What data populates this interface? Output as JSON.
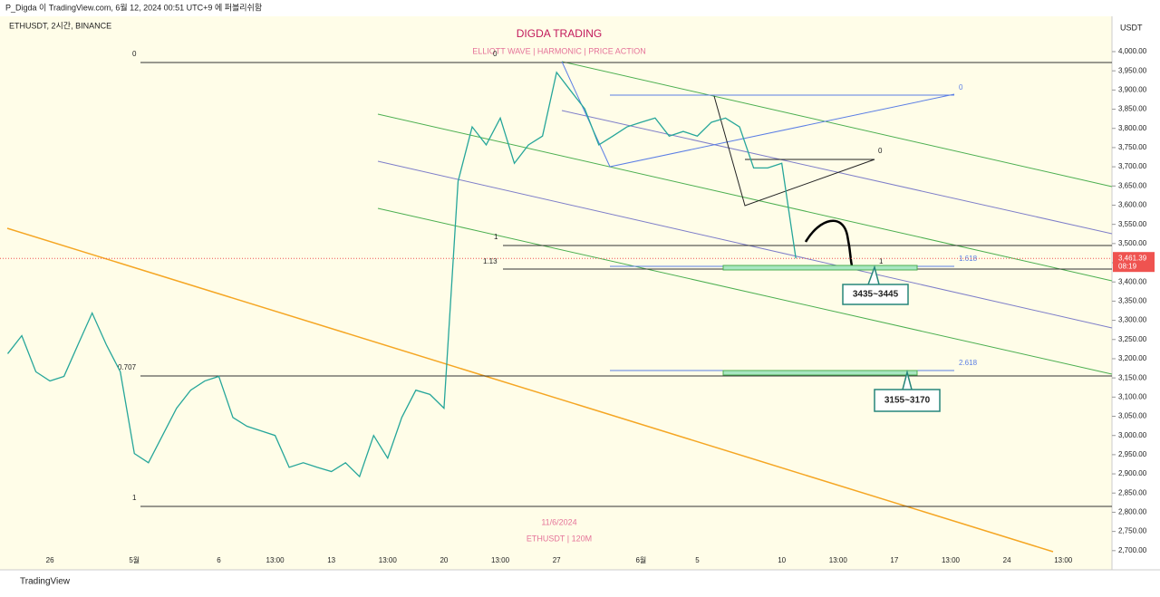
{
  "header": {
    "publisher": "P_Digda 이 TradingView.com, 6월 12, 2024 00:51 UTC+9 에 퍼블리쉬함",
    "symbol": "ETHUSDT, 2시간, BINANCE",
    "currency": "USDT",
    "countdown": "08:19",
    "brand": "TradingView"
  },
  "annotations": {
    "fib_top": "0",
    "fib_bottom": "1",
    "fib_mid": "0.707",
    "wave_start": "0",
    "level_1": "1",
    "level_113": "1.13",
    "ext_1618": "1.618",
    "ext_2618": "2.618",
    "tri_0": "0",
    "tri2_0": "0",
    "tgt_1": "1",
    "zone1": "3435~3445",
    "zone2": "3155~3170",
    "watermark_date": "11/6/2024",
    "watermark_symbol": "ETHUSDT | 120M"
  },
  "chart_data": {
    "type": "line",
    "title": "DIGDA TRADING",
    "subtitle": "ELLIOTT WAVE  |  HARMONIC  |  PRICE ACTION",
    "categories": [
      null,
      null,
      null,
      "26",
      null,
      null,
      null,
      null,
      null,
      "5월",
      null,
      null,
      null,
      null,
      null,
      "6",
      null,
      null,
      null,
      "13:00",
      null,
      null,
      null,
      "13",
      null,
      null,
      null,
      "13:00",
      null,
      null,
      null,
      "20",
      null,
      null,
      null,
      "13:00",
      null,
      null,
      null,
      "27",
      null,
      null,
      null,
      null,
      null,
      "6월",
      null,
      null,
      null,
      "5",
      null,
      null,
      null,
      null,
      null,
      "10",
      null,
      null,
      null,
      "13:00",
      null,
      null,
      null,
      "17",
      null,
      null,
      null,
      "13:00",
      null,
      null,
      null,
      "24",
      null,
      null,
      null,
      "13:00"
    ],
    "series": [
      {
        "name": "ETHUSDT",
        "color": "#26a69a",
        "values": [
          3213,
          3260,
          3166,
          3142,
          3154,
          3237,
          3319,
          3237,
          3166,
          2953,
          2929,
          3000,
          3071,
          3118,
          3142,
          3154,
          3047,
          3024,
          3012,
          3000,
          2917,
          2929,
          2917,
          2906,
          2929,
          2893,
          3000,
          2941,
          3047,
          3118,
          3107,
          3071,
          3662,
          3804,
          3757,
          3827,
          3709,
          3757,
          3780,
          3946,
          3898,
          3851,
          3757,
          3780,
          3804,
          3816,
          3827,
          3780,
          3792,
          3780,
          3816,
          3827,
          3804,
          3697,
          3697,
          3709,
          3461.39,
          null,
          null,
          null,
          null,
          null,
          null,
          null,
          null,
          null,
          null,
          null,
          null,
          null,
          null,
          null,
          null,
          null,
          null,
          null
        ],
        "value_labels": [
          null,
          null,
          null,
          null,
          null,
          null,
          null,
          null,
          null,
          null,
          null,
          null,
          null,
          null,
          null,
          null,
          null,
          null,
          null,
          null,
          null,
          null,
          null,
          null,
          null,
          null,
          null,
          null,
          null,
          null,
          null,
          null,
          null,
          null,
          null,
          null,
          null,
          null,
          null,
          null,
          null,
          null,
          null,
          null,
          null,
          null,
          null,
          null,
          null,
          null,
          null,
          null,
          null,
          null,
          null,
          null,
          "3,461.39",
          null,
          null,
          null,
          null,
          null,
          null,
          null,
          null,
          null,
          null,
          null,
          null,
          null,
          null,
          null,
          null,
          null,
          null,
          null
        ]
      }
    ],
    "ylim": [
      2650,
      4092
    ],
    "yticks": [
      {
        "value": 2700,
        "label": "2,700.00"
      },
      {
        "value": 2750,
        "label": "2,750.00"
      },
      {
        "value": 2800,
        "label": "2,800.00"
      },
      {
        "value": 2850,
        "label": "2,850.00"
      },
      {
        "value": 2900,
        "label": "2,900.00"
      },
      {
        "value": 2950,
        "label": "2,950.00"
      },
      {
        "value": 3000,
        "label": "3,000.00"
      },
      {
        "value": 3050,
        "label": "3,050.00"
      },
      {
        "value": 3100,
        "label": "3,100.00"
      },
      {
        "value": 3150,
        "label": "3,150.00"
      },
      {
        "value": 3200,
        "label": "3,200.00"
      },
      {
        "value": 3250,
        "label": "3,250.00"
      },
      {
        "value": 3300,
        "label": "3,300.00"
      },
      {
        "value": 3350,
        "label": "3,350.00"
      },
      {
        "value": 3400,
        "label": "3,400.00"
      },
      {
        "value": 3450,
        "label": "3,450.00"
      },
      {
        "value": 3500,
        "label": "3,500.00"
      },
      {
        "value": 3550,
        "label": "3,550.00"
      },
      {
        "value": 3600,
        "label": "3,600.00"
      },
      {
        "value": 3650,
        "label": "3,650.00"
      },
      {
        "value": 3700,
        "label": "3,700.00"
      },
      {
        "value": 3750,
        "label": "3,750.00"
      },
      {
        "value": 3800,
        "label": "3,800.00"
      },
      {
        "value": 3850,
        "label": "3,850.00"
      },
      {
        "value": 3900,
        "label": "3,900.00"
      },
      {
        "value": 3950,
        "label": "3,950.00"
      },
      {
        "value": 4000,
        "label": "4,000.00"
      }
    ],
    "grid": false
  }
}
